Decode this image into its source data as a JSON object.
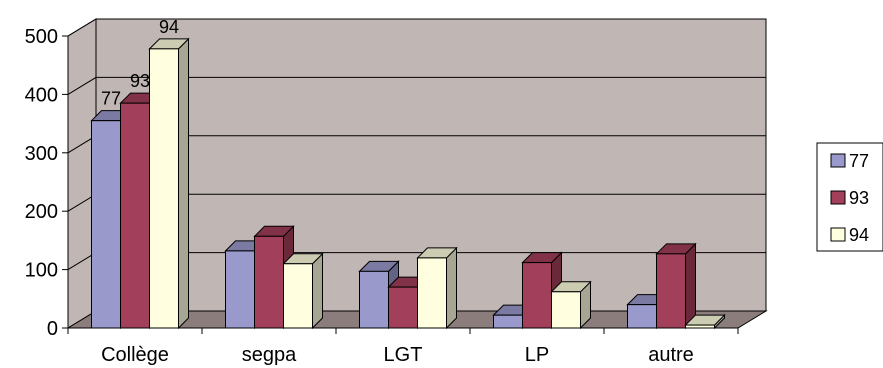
{
  "chart_data": {
    "type": "bar",
    "three_d": true,
    "categories": [
      "Collège",
      "segpa",
      "LGT",
      "LP",
      "autre"
    ],
    "series": [
      {
        "name": "77",
        "color": "#9999cc",
        "values": [
          355,
          132,
          97,
          22,
          40
        ]
      },
      {
        "name": "93",
        "color": "#a23f5a",
        "values": [
          385,
          157,
          70,
          112,
          127
        ]
      },
      {
        "name": "94",
        "color": "#ffffe0",
        "values": [
          478,
          110,
          120,
          62,
          5
        ]
      }
    ],
    "data_labels": [
      {
        "series": 0,
        "category": 0,
        "text": "77"
      },
      {
        "series": 1,
        "category": 0,
        "text": "93"
      },
      {
        "series": 2,
        "category": 0,
        "text": "94"
      }
    ],
    "y_ticks": [
      "0",
      "100",
      "200",
      "300",
      "400",
      "500"
    ],
    "ylim": [
      0,
      500
    ],
    "grid": true,
    "legend_position": "right",
    "wall_color": "#c0b6b4",
    "floor_color": "#8a7d7b",
    "title": "",
    "xlabel": "",
    "ylabel": ""
  }
}
